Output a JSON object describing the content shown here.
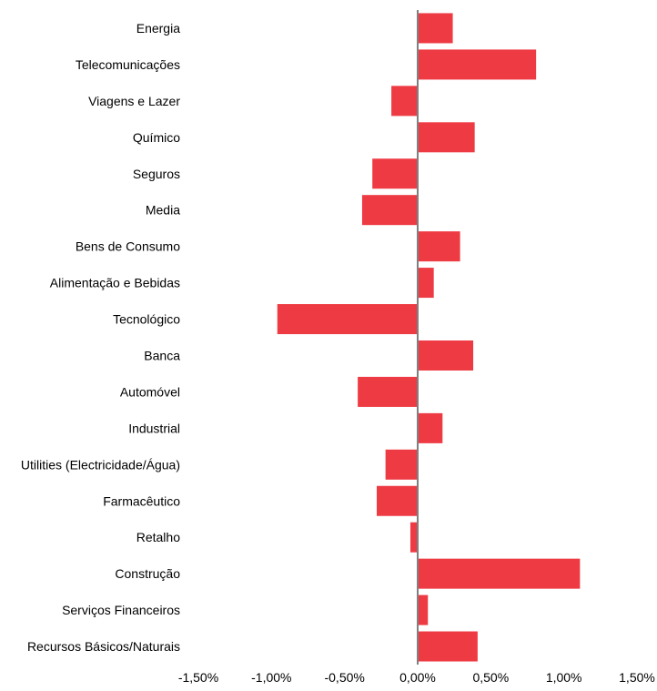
{
  "chart_data": {
    "type": "bar",
    "orientation": "horizontal",
    "title": "",
    "xlabel": "",
    "ylabel": "",
    "categories": [
      "Energia",
      "Telecomunicações",
      "Viagens e Lazer",
      "Químico",
      "Seguros",
      "Media",
      "Bens de Consumo",
      "Alimentação e Bebidas",
      "Tecnológico",
      "Banca",
      "Automóvel",
      "Industrial",
      "Utilities (Electricidade/Água)",
      "Farmacêutico",
      "Retalho",
      "Construção",
      "Serviços Financeiros",
      "Recursos Básicos/Naturais"
    ],
    "values": [
      0.24,
      0.81,
      -0.18,
      0.39,
      -0.31,
      -0.38,
      0.29,
      0.11,
      -0.96,
      0.38,
      -0.41,
      0.17,
      -0.22,
      -0.28,
      -0.05,
      1.11,
      0.07,
      0.41
    ],
    "xlim": [
      -1.5,
      1.5
    ],
    "xticks": [
      -1.5,
      -1.0,
      -0.5,
      0.0,
      0.5,
      1.0,
      1.5
    ],
    "xtick_labels": [
      "-1,50%",
      "-1,00%",
      "-0,50%",
      "0,00%",
      "0,50%",
      "1,00%",
      "1,50%"
    ],
    "grid": false,
    "legend": "none",
    "colors": {
      "bar": "#EE3A43",
      "zero_line": "#808080",
      "text": "#000000"
    }
  }
}
